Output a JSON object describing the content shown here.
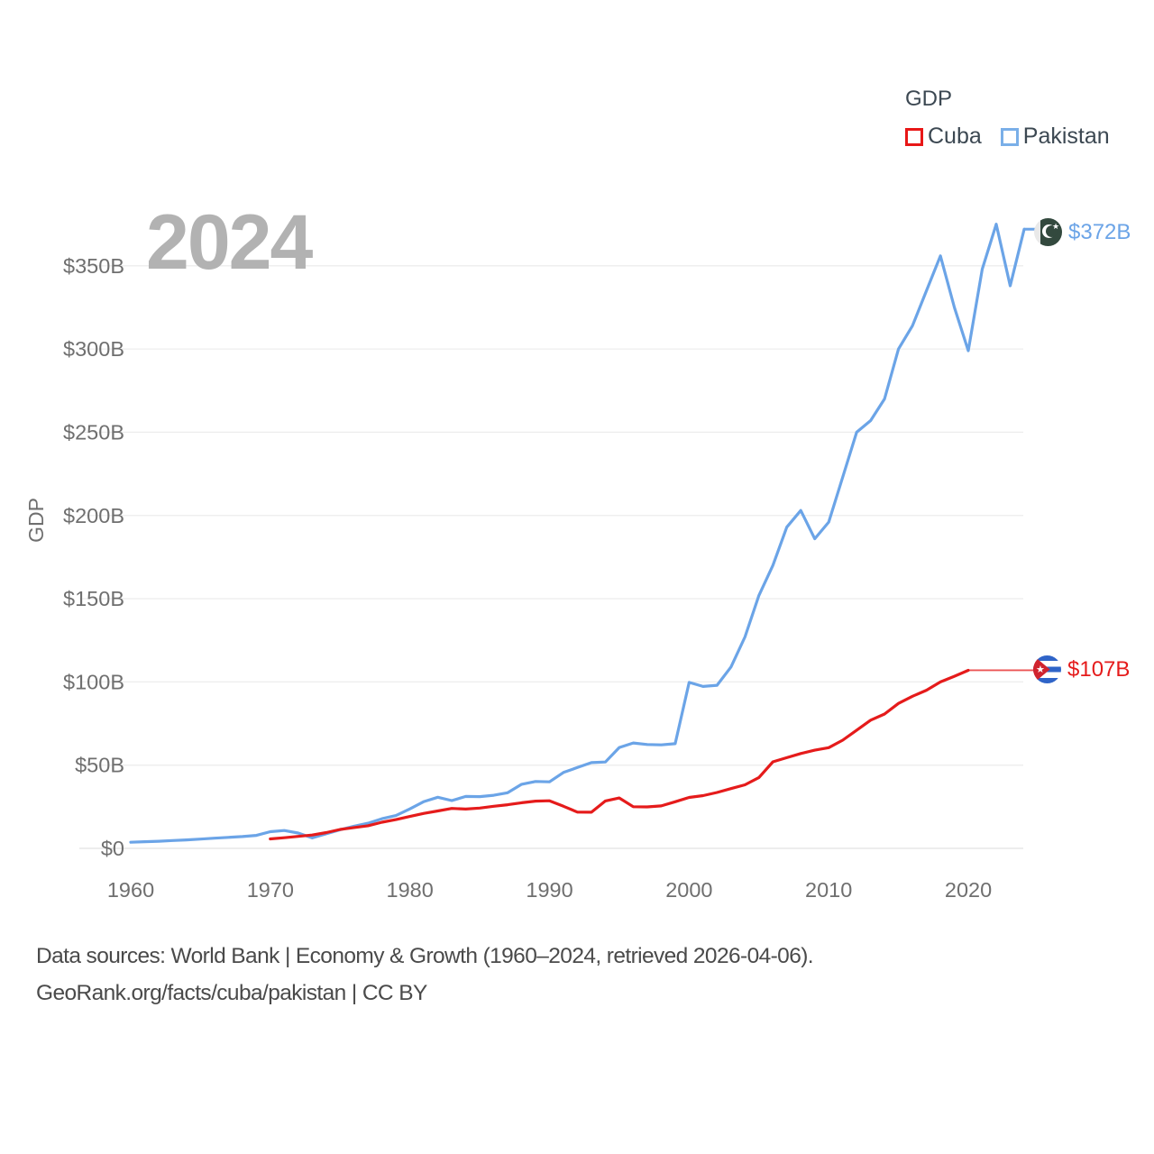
{
  "watermark": "2024",
  "legend": {
    "title": "GDP",
    "items": [
      {
        "label": "Cuba",
        "color": "#e81717"
      },
      {
        "label": "Pakistan",
        "color": "#7aafe8"
      }
    ]
  },
  "end_labels": {
    "pakistan": {
      "value": "$372B",
      "color": "#6ba4e7",
      "flag": "pakistan-flag"
    },
    "cuba": {
      "value": "$107B",
      "color": "#e51b1b",
      "flag": "cuba-flag"
    }
  },
  "footer": {
    "line1": "Data sources: World Bank | Economy & Growth (1960–2024, retrieved 2026-04-06).",
    "line2": "GeoRank.org/facts/cuba/pakistan | CC BY"
  },
  "flag_colors": {
    "pakistan_green": "#33493e",
    "cuba_blue": "#2f64c8",
    "cuba_red": "#d0232e"
  },
  "chart_data": {
    "type": "line",
    "title": "GDP",
    "ylabel": "GDP",
    "xlabel": "",
    "grid": true,
    "legend_position": "top-right",
    "xlim": [
      1960,
      2024
    ],
    "ylim": [
      0,
      380
    ],
    "x_ticks": [
      1960,
      1970,
      1980,
      1990,
      2000,
      2010,
      2020
    ],
    "y_ticks": [
      {
        "value": 0,
        "label": "$0"
      },
      {
        "value": 50,
        "label": "$50B"
      },
      {
        "value": 100,
        "label": "$100B"
      },
      {
        "value": 150,
        "label": "$150B"
      },
      {
        "value": 200,
        "label": "$200B"
      },
      {
        "value": 250,
        "label": "$250B"
      },
      {
        "value": 300,
        "label": "$300B"
      },
      {
        "value": 350,
        "label": "$350B"
      }
    ],
    "x": [
      1960,
      1961,
      1962,
      1963,
      1964,
      1965,
      1966,
      1967,
      1968,
      1969,
      1970,
      1971,
      1972,
      1973,
      1974,
      1975,
      1976,
      1977,
      1978,
      1979,
      1980,
      1981,
      1982,
      1983,
      1984,
      1985,
      1986,
      1987,
      1988,
      1989,
      1990,
      1991,
      1992,
      1993,
      1994,
      1995,
      1996,
      1997,
      1998,
      1999,
      2000,
      2001,
      2002,
      2003,
      2004,
      2005,
      2006,
      2007,
      2008,
      2009,
      2010,
      2011,
      2012,
      2013,
      2014,
      2015,
      2016,
      2017,
      2018,
      2019,
      2020,
      2021,
      2022,
      2023,
      2024
    ],
    "series": [
      {
        "name": "Cuba",
        "color": "#e51b1b",
        "unit": "billion USD",
        "flat_thin_segment_from": 2020,
        "values": [
          null,
          null,
          null,
          null,
          null,
          null,
          null,
          null,
          null,
          null,
          5.7,
          6.4,
          7.2,
          8.0,
          9.5,
          11.4,
          12.5,
          13.6,
          15.7,
          17.3,
          19.2,
          21.0,
          22.5,
          24.0,
          23.6,
          24.2,
          25.3,
          26.2,
          27.4,
          28.4,
          28.6,
          25.3,
          21.8,
          21.7,
          28.5,
          30.3,
          25.0,
          24.9,
          25.5,
          28.0,
          30.6,
          31.7,
          33.6,
          35.9,
          38.2,
          42.6,
          52.0,
          54.5,
          57.0,
          59.0,
          60.5,
          65.0,
          71.0,
          77.0,
          80.7,
          87.1,
          91.4,
          95.0,
          100.0,
          103.4,
          107.0,
          107.0,
          107.0,
          107.0,
          107.0
        ]
      },
      {
        "name": "Pakistan",
        "color": "#6ba4e7",
        "unit": "billion USD",
        "values": [
          3.7,
          4.0,
          4.3,
          4.7,
          5.1,
          5.6,
          6.1,
          6.6,
          7.1,
          7.8,
          10.0,
          10.7,
          9.2,
          6.3,
          8.8,
          11.2,
          13.3,
          15.1,
          17.8,
          19.7,
          23.7,
          28.1,
          30.7,
          28.7,
          31.2,
          31.1,
          31.9,
          33.4,
          38.5,
          40.2,
          40.0,
          45.6,
          48.6,
          51.5,
          51.9,
          60.6,
          63.3,
          62.4,
          62.2,
          62.9,
          99.7,
          97.3,
          98.0,
          109.0,
          127.0,
          152.0,
          170.0,
          193.0,
          203.0,
          186.0,
          196.0,
          223.0,
          250.0,
          257.0,
          270.0,
          300.0,
          314.0,
          335.0,
          356.0,
          325.0,
          299.0,
          348.0,
          375.0,
          338.0,
          372.0
        ]
      }
    ]
  }
}
